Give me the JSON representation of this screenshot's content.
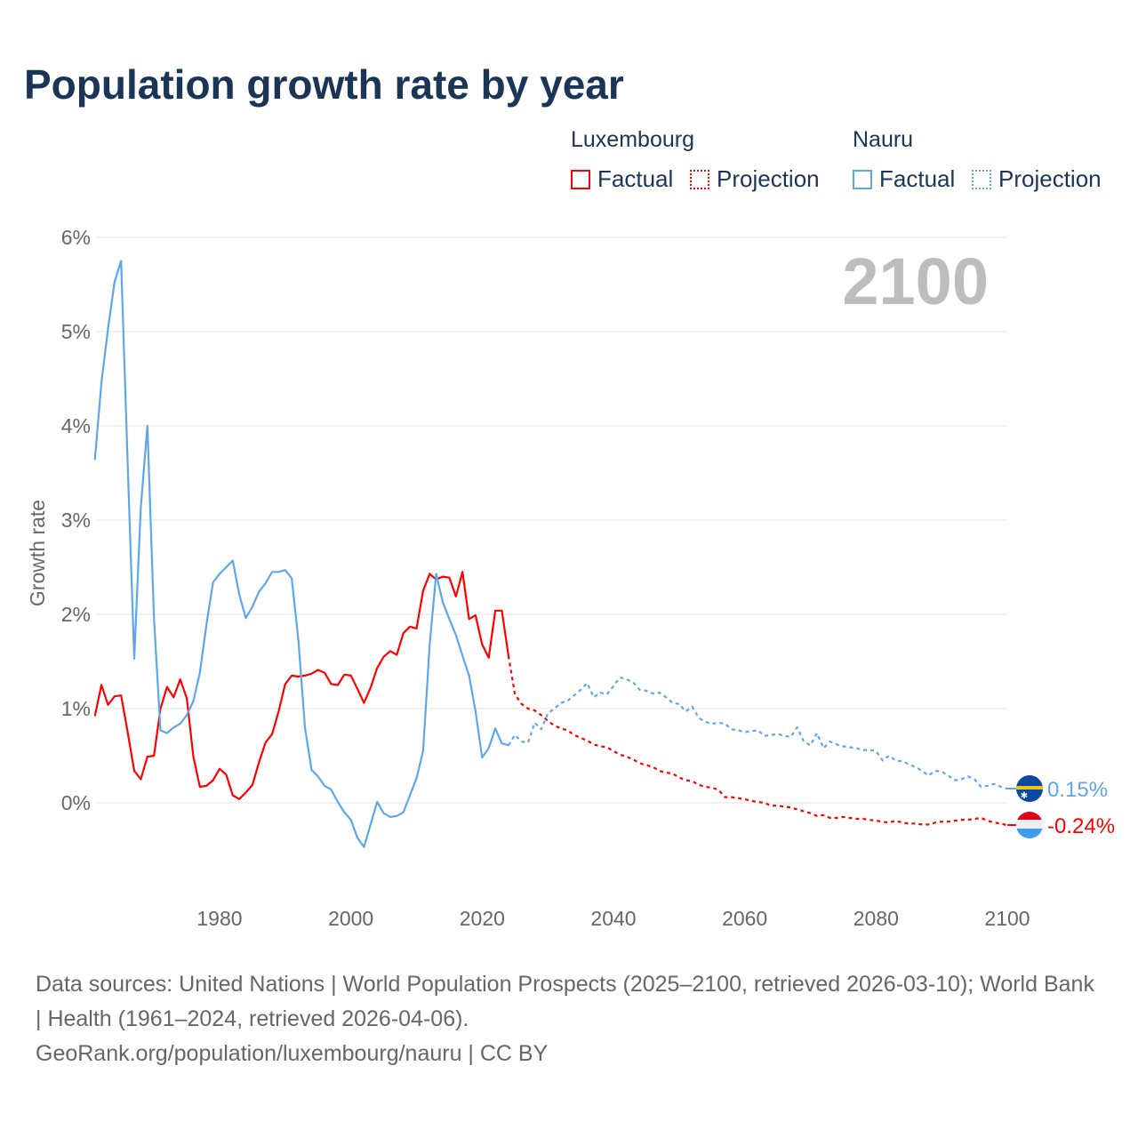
{
  "title": "Population growth rate by year",
  "legend": {
    "groups": [
      {
        "name": "Luxembourg",
        "color": "#ff0000",
        "factual": "Factual",
        "projection": "Projection"
      },
      {
        "name": "Nauru",
        "color": "#5ca7ec",
        "factual": "Factual",
        "projection": "Projection"
      }
    ]
  },
  "year_label": "2100",
  "end_labels": {
    "nauru": "0.15%",
    "luxembourg": "-0.24%"
  },
  "footer": {
    "sources": "Data sources: United Nations | World Population Prospects (2025–2100, retrieved 2026-03-10); World Bank | Health (1961–2024, retrieved 2026-04-06).",
    "credit": "GeoRank.org/population/luxembourg/nauru | CC BY"
  },
  "chart_data": {
    "type": "line",
    "title": "Population growth rate by year",
    "xlabel": "",
    "ylabel": "Growth rate",
    "xlim": [
      1961,
      2100
    ],
    "ylim": [
      -1,
      6
    ],
    "yticks": [
      {
        "v": 0,
        "label": "0%"
      },
      {
        "v": 1,
        "label": "1%"
      },
      {
        "v": 2,
        "label": "2%"
      },
      {
        "v": 3,
        "label": "3%"
      },
      {
        "v": 4,
        "label": "4%"
      },
      {
        "v": 5,
        "label": "5%"
      },
      {
        "v": 6,
        "label": "6%"
      }
    ],
    "xticks": [
      {
        "v": 1980,
        "label": "1980"
      },
      {
        "v": 2000,
        "label": "2000"
      },
      {
        "v": 2020,
        "label": "2020"
      },
      {
        "v": 2040,
        "label": "2040"
      },
      {
        "v": 2060,
        "label": "2060"
      },
      {
        "v": 2080,
        "label": "2080"
      },
      {
        "v": 2100,
        "label": "2100"
      }
    ],
    "grid": true,
    "legend_position": "top-right",
    "series": [
      {
        "name": "Luxembourg Factual",
        "country": "luxembourg",
        "style": "solid",
        "color": "#ff0000",
        "x_start": 1961,
        "values": [
          0.92,
          1.25,
          1.04,
          1.13,
          1.14,
          0.75,
          0.34,
          0.25,
          0.49,
          0.5,
          1.0,
          1.23,
          1.12,
          1.31,
          1.11,
          0.49,
          0.17,
          0.18,
          0.24,
          0.36,
          0.3,
          0.08,
          0.04,
          0.11,
          0.19,
          0.43,
          0.64,
          0.73,
          0.97,
          1.26,
          1.35,
          1.34,
          1.35,
          1.37,
          1.41,
          1.38,
          1.26,
          1.25,
          1.36,
          1.35,
          1.21,
          1.06,
          1.22,
          1.43,
          1.55,
          1.61,
          1.57,
          1.8,
          1.87,
          1.85,
          2.25,
          2.43,
          2.37,
          2.4,
          2.39,
          2.19,
          2.45,
          1.95,
          1.99,
          1.68,
          1.54,
          2.04,
          2.04,
          1.56
        ]
      },
      {
        "name": "Luxembourg Projection",
        "country": "luxembourg",
        "style": "dotted",
        "color": "#ff0000",
        "x_start": 2024,
        "values": [
          1.56,
          1.15,
          1.05,
          1.0,
          0.98,
          0.93,
          0.87,
          0.82,
          0.79,
          0.77,
          0.72,
          0.69,
          0.66,
          0.62,
          0.6,
          0.59,
          0.55,
          0.51,
          0.49,
          0.46,
          0.42,
          0.4,
          0.38,
          0.34,
          0.32,
          0.31,
          0.27,
          0.24,
          0.23,
          0.19,
          0.17,
          0.16,
          0.14,
          0.06,
          0.06,
          0.05,
          0.04,
          0.02,
          0.01,
          0.0,
          -0.03,
          -0.03,
          -0.04,
          -0.05,
          -0.07,
          -0.09,
          -0.11,
          -0.14,
          -0.13,
          -0.16,
          -0.16,
          -0.15,
          -0.16,
          -0.17,
          -0.17,
          -0.18,
          -0.19,
          -0.2,
          -0.21,
          -0.19,
          -0.21,
          -0.22,
          -0.22,
          -0.23,
          -0.23,
          -0.21,
          -0.2,
          -0.2,
          -0.19,
          -0.18,
          -0.18,
          -0.17,
          -0.16,
          -0.19,
          -0.21,
          -0.22,
          -0.24
        ]
      },
      {
        "name": "Nauru Factual",
        "country": "nauru",
        "style": "solid",
        "color": "#5ca7ec",
        "x_start": 1961,
        "values": [
          3.64,
          4.46,
          5.03,
          5.53,
          5.75,
          3.6,
          1.53,
          3.14,
          4.0,
          1.96,
          0.77,
          0.74,
          0.8,
          0.84,
          0.93,
          1.08,
          1.38,
          1.89,
          2.34,
          2.43,
          2.5,
          2.57,
          2.21,
          1.96,
          2.08,
          2.24,
          2.33,
          2.45,
          2.45,
          2.47,
          2.38,
          1.73,
          0.8,
          0.35,
          0.28,
          0.18,
          0.14,
          0.01,
          -0.1,
          -0.18,
          -0.37,
          -0.47,
          -0.23,
          0.01,
          -0.11,
          -0.15,
          -0.14,
          -0.1,
          0.08,
          0.26,
          0.55,
          1.68,
          2.43,
          2.13,
          1.95,
          1.78,
          1.56,
          1.35,
          0.97,
          0.48,
          0.58,
          0.79,
          0.63,
          0.61
        ]
      },
      {
        "name": "Nauru Projection",
        "country": "nauru",
        "style": "dotted",
        "color": "#5ca7ec",
        "x_start": 2024,
        "values": [
          0.61,
          0.72,
          0.65,
          0.64,
          0.85,
          0.78,
          0.95,
          1.0,
          1.06,
          1.08,
          1.14,
          1.2,
          1.27,
          1.12,
          1.17,
          1.15,
          1.24,
          1.33,
          1.31,
          1.28,
          1.2,
          1.19,
          1.16,
          1.17,
          1.12,
          1.06,
          1.05,
          0.97,
          1.02,
          0.9,
          0.86,
          0.84,
          0.85,
          0.84,
          0.78,
          0.77,
          0.75,
          0.76,
          0.77,
          0.71,
          0.72,
          0.73,
          0.71,
          0.7,
          0.8,
          0.65,
          0.61,
          0.74,
          0.58,
          0.65,
          0.62,
          0.6,
          0.59,
          0.58,
          0.56,
          0.56,
          0.55,
          0.45,
          0.5,
          0.45,
          0.44,
          0.41,
          0.38,
          0.34,
          0.29,
          0.34,
          0.33,
          0.29,
          0.24,
          0.25,
          0.28,
          0.25,
          0.17,
          0.18,
          0.2,
          0.17,
          0.15
        ]
      }
    ]
  }
}
